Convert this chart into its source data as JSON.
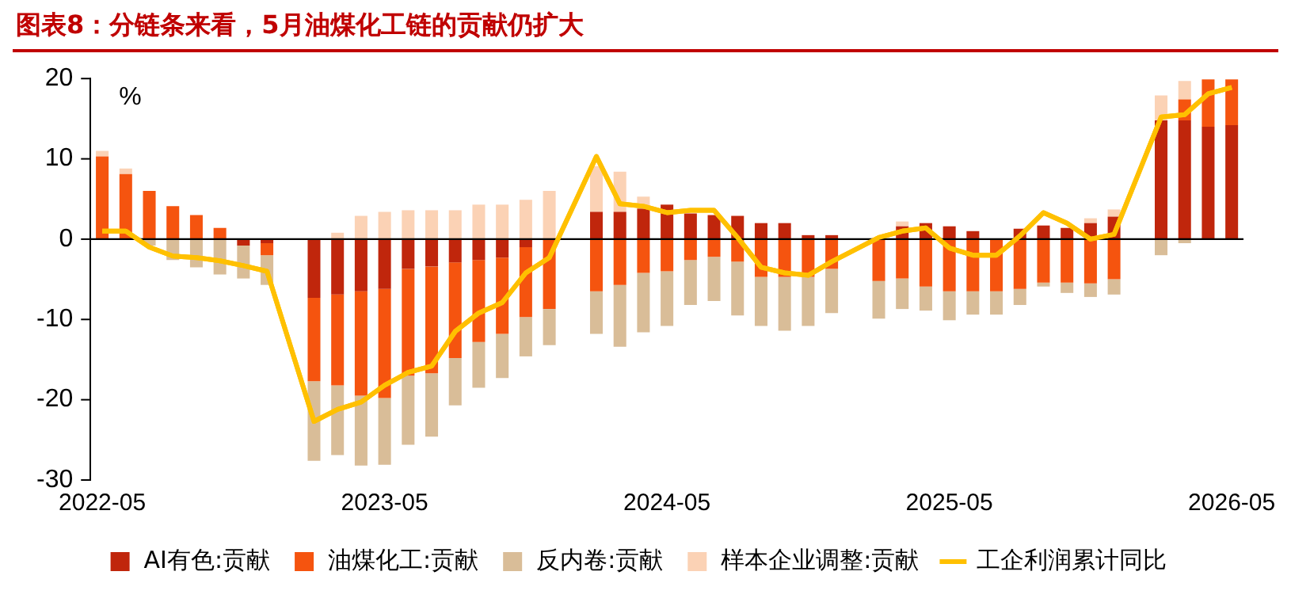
{
  "chart_data": {
    "type": "bar",
    "title": "图表8：分链条来看，5月油煤化工链的贡献仍扩大",
    "ylabel": "%",
    "stacked": true,
    "legend": "bottom",
    "grid": false,
    "categories": [
      "2022-05",
      null,
      null,
      null,
      null,
      null,
      null,
      null,
      null,
      null,
      null,
      null,
      "2023-05",
      null,
      null,
      null,
      null,
      null,
      null,
      null,
      null,
      null,
      null,
      null,
      "2024-05",
      null,
      null,
      null,
      null,
      null,
      null,
      null,
      null,
      null,
      null,
      null,
      "2025-05",
      null,
      null,
      null,
      null,
      null,
      null,
      null,
      null,
      null,
      null,
      null,
      "2026-05"
    ],
    "ref_lines": [
      {
        "axis": "y",
        "value": 0,
        "color": "#000000"
      }
    ],
    "ylim": [
      -30,
      20
    ],
    "yticks": [
      -30,
      -20,
      -10,
      0,
      10,
      20
    ],
    "series": [
      {
        "name": "AI有色:贡献",
        "color": "#c0260c",
        "values": [
          0,
          0,
          0,
          0,
          0,
          0,
          -0.8,
          -0.5,
          null,
          -7.3,
          -6.9,
          -6.5,
          -6.2,
          -3.7,
          -3.4,
          -2.9,
          -2.6,
          -2.3,
          -1.0,
          null,
          null,
          3.4,
          3.4,
          3.8,
          4.3,
          3.2,
          3.0,
          2.9,
          2.0,
          2.0,
          0.5,
          0.5,
          null,
          null,
          1.6,
          2.0,
          1.6,
          1.0,
          null,
          1.3,
          1.7,
          1.4,
          2.0,
          2.8,
          null,
          14.8,
          14.8,
          14.0,
          14.2
        ]
      },
      {
        "name": "油煤化工:贡献",
        "color": "#f5540f",
        "values": [
          10.3,
          8.1,
          6.0,
          4.1,
          3.0,
          1.4,
          0,
          -1.5,
          null,
          -10.4,
          -11.3,
          -13.0,
          -13.6,
          -13.3,
          -13.3,
          -11.9,
          -10.2,
          -9.5,
          -8.7,
          -8.7,
          null,
          -6.5,
          -5.7,
          -4.2,
          -4.0,
          -2.6,
          -2.2,
          -2.8,
          -4.7,
          -4.7,
          -4.7,
          -3.7,
          null,
          -5.2,
          -4.9,
          -5.9,
          -6.5,
          -6.5,
          -6.5,
          -6.2,
          -5.4,
          -5.4,
          -5.5,
          -5.0,
          null,
          0,
          2.6,
          5.9,
          5.7
        ]
      },
      {
        "name": "反内卷:贡献",
        "color": "#d9bd98",
        "values": [
          0,
          0,
          -0.8,
          -2.6,
          -3.5,
          -4.4,
          -4.1,
          -3.7,
          null,
          -9.9,
          -8.7,
          -8.7,
          -8.3,
          -8.6,
          -7.9,
          -5.9,
          -5.7,
          -5.5,
          -4.9,
          -4.5,
          null,
          -5.3,
          -7.7,
          -7.4,
          -6.8,
          -5.6,
          -5.5,
          -6.7,
          -6.1,
          -6.7,
          -6.1,
          -5.5,
          null,
          -4.7,
          -3.8,
          -3.0,
          -3.6,
          -2.9,
          -2.9,
          -2.0,
          -0.5,
          -1.3,
          -1.7,
          -1.9,
          null,
          -2.0,
          -0.5,
          0,
          0
        ]
      },
      {
        "name": "样本企业调整:贡献",
        "color": "#fbd2b5",
        "values": [
          0.7,
          0.7,
          0,
          0,
          0,
          0,
          0,
          0,
          null,
          0,
          0.8,
          2.9,
          3.4,
          3.6,
          3.6,
          3.6,
          4.3,
          4.3,
          4.9,
          6.0,
          null,
          5.7,
          5.0,
          1.5,
          0,
          0,
          0,
          null,
          0,
          0,
          0,
          0,
          null,
          0,
          0.6,
          0,
          0,
          0,
          0,
          0,
          0,
          0,
          0.6,
          0.9,
          null,
          3.1,
          2.3,
          0,
          0
        ]
      },
      {
        "name": "工企利润累计同比",
        "type": "line",
        "color": "#ffc000",
        "values": [
          1.0,
          1.0,
          -1.0,
          -2.1,
          -2.3,
          -2.7,
          -3.3,
          -4.0,
          null,
          -22.7,
          -21.2,
          -20.3,
          -18.2,
          -16.6,
          -15.8,
          -11.5,
          -9.2,
          -7.9,
          -4.2,
          -2.3,
          null,
          10.3,
          4.4,
          4.1,
          3.3,
          3.6,
          3.6,
          0.2,
          -3.5,
          -4.2,
          -4.5,
          -2.8,
          null,
          0.2,
          1.0,
          1.4,
          -1.1,
          -2.0,
          -2.0,
          0.4,
          3.3,
          2.0,
          0,
          0.6,
          null,
          15.2,
          15.5,
          18.1,
          18.9
        ]
      }
    ]
  }
}
